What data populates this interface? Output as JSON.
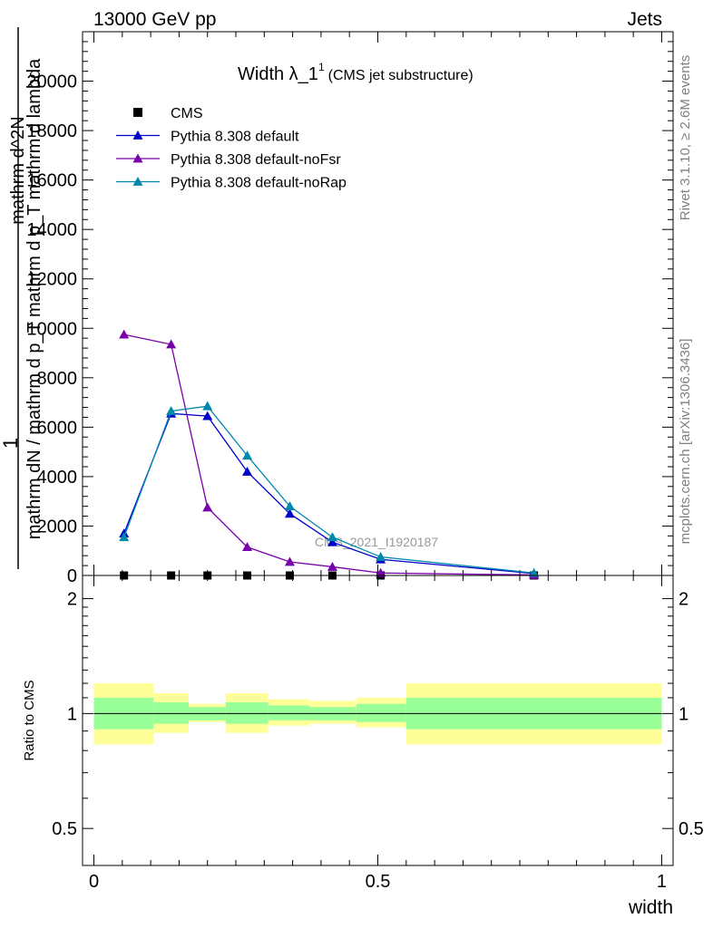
{
  "header": {
    "left": "13000 GeV pp",
    "right": "Jets"
  },
  "side": {
    "rivet": "Rivet 3.1.10, ≥ 2.6M events",
    "mcplots": "mcplots.cern.ch [arXiv:1306.3436]"
  },
  "chart_data": [
    {
      "type": "line",
      "title_main": "Width λ_1",
      "title_sup": "1",
      "title_sub": "(CMS jet substructure)",
      "watermark": "CMS_2021_I1920187",
      "ylabel_top": "1",
      "ylabel_num": "mathrm d^2N",
      "ylabel_den": "mathrm dN / mathrm d p_T mathrm d p_T mathrm d lambda",
      "xlim": [
        -0.02,
        1.02
      ],
      "ylim": [
        0,
        22000
      ],
      "yticks": [
        0,
        2000,
        4000,
        6000,
        8000,
        10000,
        12000,
        14000,
        16000,
        18000,
        20000
      ],
      "yticklabels": [
        "0",
        "2000",
        "4000",
        "6000",
        "8000",
        "10000",
        "12000",
        "14000",
        "16000",
        "18000",
        "20000"
      ],
      "legend_position": "top-left",
      "series": [
        {
          "name": "CMS",
          "marker": "square",
          "color": "#000000",
          "x": [
            0.053,
            0.136,
            0.2,
            0.27,
            0.345,
            0.42,
            0.505,
            0.775
          ],
          "y": [
            0,
            0,
            0,
            0,
            0,
            0,
            0,
            0
          ]
        },
        {
          "name": "Pythia 8.308 default",
          "marker": "triangle",
          "color": "#0000cc",
          "x": [
            0.053,
            0.136,
            0.2,
            0.27,
            0.345,
            0.42,
            0.505,
            0.775
          ],
          "y": [
            1700,
            6550,
            6450,
            4200,
            2500,
            1350,
            650,
            80
          ]
        },
        {
          "name": "Pythia 8.308 default-noFsr",
          "marker": "triangle",
          "color": "#7700aa",
          "x": [
            0.053,
            0.136,
            0.2,
            0.27,
            0.345,
            0.42,
            0.505,
            0.775
          ],
          "y": [
            9750,
            9350,
            2750,
            1150,
            550,
            350,
            100,
            20
          ]
        },
        {
          "name": "Pythia 8.308 default-noRap",
          "marker": "triangle",
          "color": "#0088aa",
          "x": [
            0.053,
            0.136,
            0.2,
            0.27,
            0.345,
            0.42,
            0.505,
            0.775
          ],
          "y": [
            1550,
            6650,
            6850,
            4850,
            2800,
            1550,
            750,
            100
          ]
        }
      ]
    },
    {
      "type": "area",
      "ylabel": "Ratio to CMS",
      "xlabel": "width",
      "xlim": [
        -0.02,
        1.02
      ],
      "ylim": [
        0.4,
        2.3
      ],
      "yscale": "log",
      "yticks": [
        0.5,
        1,
        2
      ],
      "yticklabels": [
        "0.5",
        "1",
        "2"
      ],
      "xticks": [
        0,
        0.5,
        1
      ],
      "xticklabels": [
        "0",
        "0.5",
        "1"
      ],
      "reference_line": 1,
      "band_colors": {
        "inner": "#99ff99",
        "outer": "#ffff99"
      },
      "bins": [
        {
          "x0": 0.0,
          "x1": 0.105,
          "inner": [
            0.91,
            1.1
          ],
          "outer": [
            0.83,
            1.2
          ]
        },
        {
          "x0": 0.105,
          "x1": 0.167,
          "inner": [
            0.94,
            1.07
          ],
          "outer": [
            0.89,
            1.13
          ]
        },
        {
          "x0": 0.167,
          "x1": 0.232,
          "inner": [
            0.96,
            1.04
          ],
          "outer": [
            0.95,
            1.06
          ]
        },
        {
          "x0": 0.232,
          "x1": 0.307,
          "inner": [
            0.94,
            1.07
          ],
          "outer": [
            0.89,
            1.13
          ]
        },
        {
          "x0": 0.307,
          "x1": 0.38,
          "inner": [
            0.96,
            1.05
          ],
          "outer": [
            0.93,
            1.09
          ]
        },
        {
          "x0": 0.38,
          "x1": 0.462,
          "inner": [
            0.96,
            1.04
          ],
          "outer": [
            0.94,
            1.08
          ]
        },
        {
          "x0": 0.462,
          "x1": 0.55,
          "inner": [
            0.95,
            1.06
          ],
          "outer": [
            0.92,
            1.1
          ]
        },
        {
          "x0": 0.55,
          "x1": 1.0,
          "inner": [
            0.91,
            1.1
          ],
          "outer": [
            0.83,
            1.2
          ]
        }
      ]
    }
  ]
}
